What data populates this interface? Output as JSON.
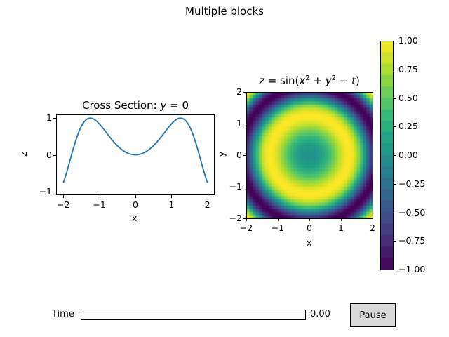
{
  "figure": {
    "suptitle": "Multiple blocks"
  },
  "widgets": {
    "slider_label": "Time",
    "slider_value": "0.00",
    "slider_min": 0,
    "slider_position_pct": 0,
    "pause_button": "Pause"
  },
  "chart_data": [
    {
      "type": "line",
      "title": "Cross Section: y = 0",
      "xlabel": "x",
      "ylabel": "z",
      "xlim": [
        -2.2,
        2.2
      ],
      "ylim": [
        -1.1,
        1.1
      ],
      "xticks": [
        "−2",
        "−1",
        "0",
        "1",
        "2"
      ],
      "yticks": [
        "−1",
        "0",
        "1"
      ],
      "function": "z = sin(x^2)",
      "x": [
        -2.0,
        -1.75,
        -1.5,
        -1.25,
        -1.0,
        -0.75,
        -0.5,
        -0.25,
        0.0,
        0.25,
        0.5,
        0.75,
        1.0,
        1.25,
        1.5,
        1.75,
        2.0
      ],
      "y": [
        -0.757,
        0.081,
        0.778,
        1.0,
        0.841,
        0.531,
        0.247,
        0.062,
        0.0,
        0.062,
        0.247,
        0.531,
        0.841,
        1.0,
        0.778,
        0.081,
        -0.757
      ],
      "color": "#1f77b4",
      "grid": false
    },
    {
      "type": "heatmap",
      "title": "z = sin(x² + y² − t)",
      "xlabel": "x",
      "ylabel": "y",
      "xlim": [
        -2,
        2
      ],
      "ylim": [
        -2,
        2
      ],
      "xticks": [
        "−2",
        "−1",
        "0",
        "1",
        "2"
      ],
      "yticks": [
        "−2",
        "−1",
        "0",
        "1",
        "2"
      ],
      "function": "z = sin(x^2 + y^2 - t), t = 0",
      "colormap": "viridis",
      "grid_size": 40,
      "colorbar": {
        "range": [
          -1.0,
          1.0
        ],
        "ticks": [
          "1.00",
          "0.75",
          "0.50",
          "0.25",
          "0.00",
          "−0.25",
          "−0.50",
          "−0.75",
          "−1.00"
        ]
      }
    }
  ]
}
